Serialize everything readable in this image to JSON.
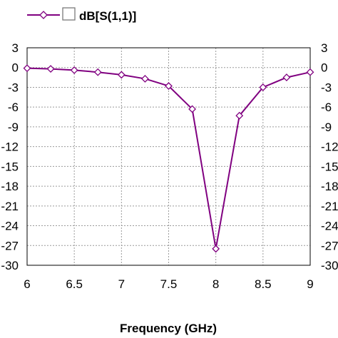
{
  "chart_data": {
    "type": "line",
    "xlabel": "Frequency (GHz)",
    "ylabel": "",
    "xlim": [
      6,
      9
    ],
    "ylim": [
      -30,
      3
    ],
    "xticks": [
      6,
      6.5,
      7,
      7.5,
      8,
      8.5,
      9
    ],
    "xtick_labels": [
      "6",
      "6.5",
      "7",
      "7.5",
      "8",
      "8.5",
      "9"
    ],
    "yticks": [
      3,
      0,
      -3,
      -6,
      -9,
      -12,
      -15,
      -18,
      -21,
      -24,
      -27,
      -30
    ],
    "ytick_labels": [
      "3",
      "0",
      "-3",
      "-6",
      "-9",
      "-12",
      "-15",
      "-18",
      "-21",
      "-24",
      "-27",
      "-30"
    ],
    "grid": true,
    "legend_position": "top-left",
    "series": [
      {
        "name": "dB[S(1,1)]",
        "color": "#800080",
        "marker": "diamond",
        "x": [
          6,
          6.25,
          6.5,
          6.75,
          7,
          7.25,
          7.5,
          7.75,
          8,
          8.25,
          8.5,
          8.75,
          9
        ],
        "y": [
          -0.1,
          -0.2,
          -0.4,
          -0.7,
          -1.1,
          -1.7,
          -2.8,
          -6.3,
          -27.5,
          -7.3,
          -3.0,
          -1.5,
          -0.7
        ]
      }
    ]
  }
}
